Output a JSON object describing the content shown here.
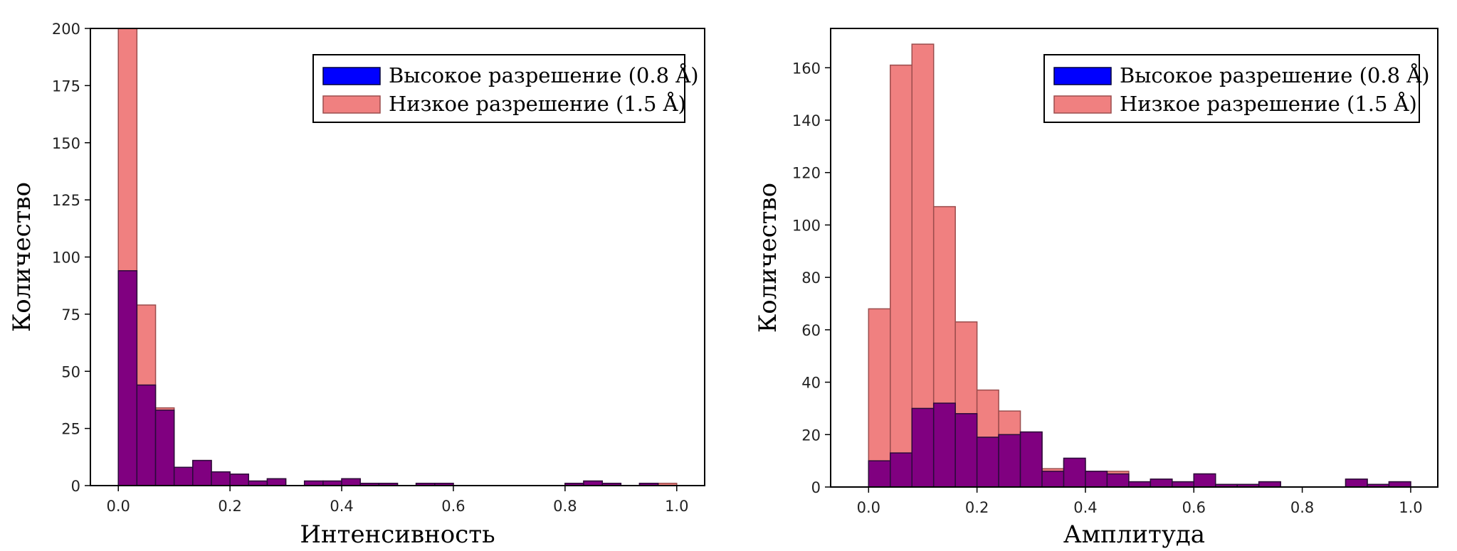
{
  "colors": {
    "high_res": "#0000ff",
    "low_res": "#f08080",
    "overlap": "#800080",
    "axis": "#000000"
  },
  "chart_data": [
    {
      "type": "bar",
      "xlabel": "Интенсивность",
      "ylabel": "Количество",
      "xlim": [
        -0.05,
        1.05
      ],
      "ylim": [
        0,
        200
      ],
      "xticks": [
        0.0,
        0.2,
        0.4,
        0.6,
        0.8,
        1.0
      ],
      "xtick_labels": [
        "0.0",
        "0.2",
        "0.4",
        "0.6",
        "0.8",
        "1.0"
      ],
      "yticks": [
        0,
        25,
        50,
        75,
        100,
        125,
        150,
        175,
        200
      ],
      "ytick_labels": [
        "0",
        "25",
        "50",
        "75",
        "100",
        "125",
        "150",
        "175",
        "200"
      ],
      "bin_edges": [
        0.0,
        0.0333,
        0.0667,
        0.1,
        0.1333,
        0.1667,
        0.2,
        0.2333,
        0.2667,
        0.3,
        0.3333,
        0.3667,
        0.4,
        0.4333,
        0.4667,
        0.5,
        0.5333,
        0.5667,
        0.6,
        0.6333,
        0.6667,
        0.7,
        0.7333,
        0.7667,
        0.8,
        0.8333,
        0.8667,
        0.9,
        0.9333,
        0.9667,
        1.0
      ],
      "legend_position": "top-right",
      "series": [
        {
          "name": "Высокое разрешение (0.8 Å)",
          "values": [
            94,
            44,
            33,
            8,
            11,
            6,
            5,
            2,
            3,
            0,
            2,
            2,
            3,
            1,
            1,
            0,
            1,
            1,
            0,
            0,
            0,
            0,
            0,
            0,
            1,
            2,
            1,
            0,
            1,
            0
          ]
        },
        {
          "name": "Низкое разрешение (1.5 Å)",
          "values": [
            200,
            79,
            34,
            8,
            11,
            6,
            5,
            2,
            3,
            0,
            2,
            2,
            3,
            1,
            1,
            0,
            1,
            1,
            0,
            0,
            0,
            0,
            0,
            0,
            1,
            2,
            1,
            0,
            1,
            1
          ]
        }
      ]
    },
    {
      "type": "bar",
      "xlabel": "Амплитуда",
      "ylabel": "Количество",
      "xlim": [
        -0.07,
        1.05
      ],
      "ylim": [
        0,
        175
      ],
      "xticks": [
        0.0,
        0.2,
        0.4,
        0.6,
        0.8,
        1.0
      ],
      "xtick_labels": [
        "0.0",
        "0.2",
        "0.4",
        "0.6",
        "0.8",
        "1.0"
      ],
      "yticks": [
        0,
        20,
        40,
        60,
        80,
        100,
        120,
        140,
        160
      ],
      "ytick_labels": [
        "0",
        "20",
        "40",
        "60",
        "80",
        "100",
        "120",
        "140",
        "160"
      ],
      "bin_edges": [
        0.0,
        0.04,
        0.08,
        0.12,
        0.16,
        0.2,
        0.24,
        0.28,
        0.32,
        0.36,
        0.4,
        0.44,
        0.48,
        0.52,
        0.56,
        0.6,
        0.64,
        0.68,
        0.72,
        0.76,
        0.8,
        0.84,
        0.88,
        0.92,
        0.96,
        1.0
      ],
      "legend_position": "top-right",
      "series": [
        {
          "name": "Высокое разрешение (0.8 Å)",
          "values": [
            10,
            13,
            30,
            32,
            28,
            19,
            20,
            21,
            6,
            11,
            6,
            5,
            2,
            3,
            2,
            5,
            1,
            1,
            2,
            0,
            0,
            0,
            3,
            1,
            2
          ]
        },
        {
          "name": "Низкое разрешение (1.5 Å)",
          "values": [
            68,
            161,
            169,
            107,
            63,
            37,
            29,
            21,
            7,
            10,
            6,
            6,
            2,
            3,
            2,
            5,
            1,
            1,
            2,
            0,
            0,
            0,
            3,
            1,
            2
          ]
        }
      ]
    }
  ]
}
